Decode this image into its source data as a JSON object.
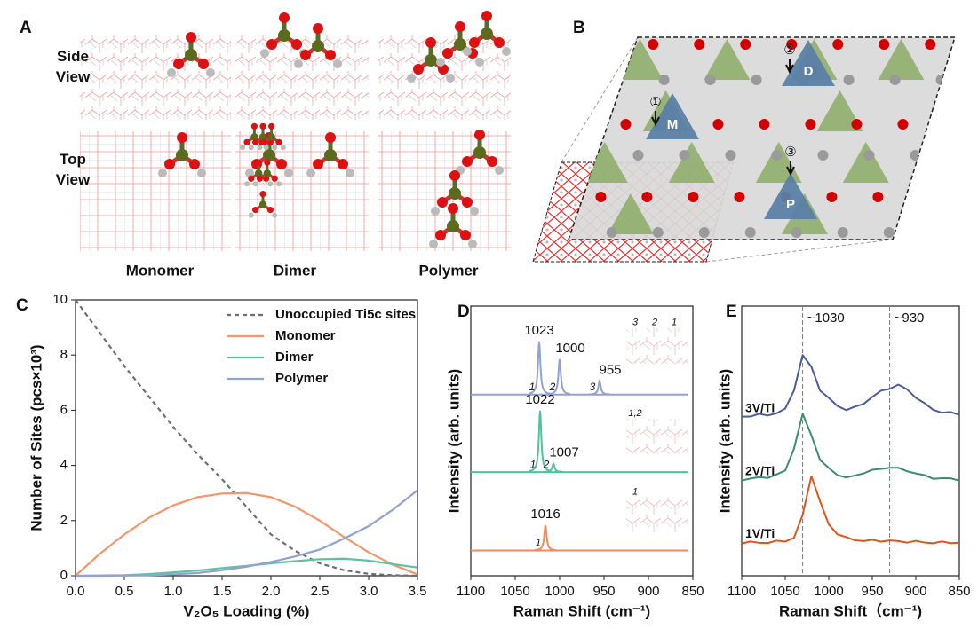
{
  "panel_a": {
    "label": "A",
    "views": [
      "Side View",
      "Top View"
    ],
    "structures": [
      "Monomer",
      "Dimer",
      "Polymer"
    ]
  },
  "panel_b": {
    "label": "B",
    "sites": [
      {
        "number": "①",
        "label": "M"
      },
      {
        "number": "②",
        "label": "D"
      },
      {
        "number": "③",
        "label": "P"
      }
    ]
  },
  "chart_data": [
    {
      "panel": "C",
      "type": "line",
      "xlabel": "V₂O₅ Loading (%)",
      "ylabel": "Number of Sites (pcs×10³)",
      "x": [
        0,
        0.25,
        0.5,
        0.75,
        1.0,
        1.25,
        1.5,
        1.75,
        2.0,
        2.25,
        2.5,
        2.75,
        3.0,
        3.25,
        3.5
      ],
      "xlim": [
        0,
        3.5
      ],
      "ylim": [
        0,
        10
      ],
      "xticks": [
        {
          "value": 0,
          "label": "0.0"
        },
        0.5,
        {
          "value": 1,
          "label": "1.0"
        },
        1.5,
        {
          "value": 2,
          "label": "2.0"
        },
        2.5,
        {
          "value": 3,
          "label": "3.0"
        },
        3.5
      ],
      "yticks": [
        0,
        2,
        4,
        6,
        8,
        10
      ],
      "legend": "upper right",
      "series": [
        {
          "name": "Unoccupied Ti5c sites",
          "color": "#6e6e6e",
          "line_style": "dashed",
          "values": [
            10,
            8.8,
            7.6,
            6.5,
            5.4,
            4.4,
            3.5,
            2.5,
            1.5,
            0.9,
            0.45,
            0.2,
            0.07,
            0.02,
            0
          ]
        },
        {
          "name": "Monomer",
          "color": "#f4956a",
          "line_style": "solid",
          "values": [
            0,
            0.8,
            1.5,
            2.1,
            2.55,
            2.85,
            2.98,
            3.0,
            2.85,
            2.5,
            2.0,
            1.4,
            0.85,
            0.4,
            0.05
          ]
        },
        {
          "name": "Dimer",
          "color": "#5cc3a0",
          "line_style": "solid",
          "values": [
            0,
            0.01,
            0.02,
            0.06,
            0.12,
            0.19,
            0.28,
            0.36,
            0.45,
            0.53,
            0.6,
            0.62,
            0.55,
            0.42,
            0.3
          ]
        },
        {
          "name": "Polymer",
          "color": "#8fa3d1",
          "line_style": "solid",
          "values": [
            0,
            0,
            0.01,
            0.02,
            0.05,
            0.1,
            0.2,
            0.33,
            0.5,
            0.7,
            0.95,
            1.35,
            1.8,
            2.4,
            3.1
          ]
        }
      ]
    },
    {
      "panel": "D",
      "type": "spectrum",
      "xlabel": "Raman Shift (cm⁻¹)",
      "ylabel": "Intensity (arb. units)",
      "xlim": [
        1100,
        850
      ],
      "ylim": [
        0,
        320
      ],
      "xticks": [
        1100,
        1050,
        1000,
        950,
        900,
        850
      ],
      "series": [
        {
          "color": "#8fa3cc",
          "peaks": [
            1023,
            1000,
            955
          ],
          "heights": [
            63,
            42,
            16
          ],
          "modes": [
            "1",
            "2",
            "3"
          ],
          "inset_labels": [
            "3",
            "2",
            "1"
          ]
        },
        {
          "color": "#4fc39b",
          "peaks": [
            1022,
            1007
          ],
          "heights": [
            73,
            10
          ],
          "modes": [
            "1",
            "2"
          ],
          "inset_labels": [
            "1,2"
          ]
        },
        {
          "color": "#f08a5a",
          "peaks": [
            1016
          ],
          "heights": [
            30
          ],
          "modes": [
            "1"
          ],
          "inset_labels": [
            "1"
          ]
        }
      ]
    },
    {
      "panel": "E",
      "type": "line",
      "xlabel": "Raman Shift（cm⁻¹)",
      "ylabel": "Intensity (arb. units)",
      "x": [
        1100,
        1090,
        1080,
        1070,
        1060,
        1050,
        1040,
        1030,
        1020,
        1010,
        1000,
        990,
        980,
        970,
        960,
        950,
        940,
        930,
        920,
        910,
        900,
        890,
        880,
        870,
        860,
        850
      ],
      "xlim": [
        1100,
        850
      ],
      "ylim": [
        0,
        300
      ],
      "xticks": [
        1100,
        1050,
        1000,
        950,
        900,
        850
      ],
      "reference_lines": [
        {
          "x": 1030,
          "label": "~1030"
        },
        {
          "x": 930,
          "label": "~930"
        }
      ],
      "series": [
        {
          "name": "3V/Ti",
          "color": "#4a5c9a",
          "values": [
            0,
            1,
            2,
            2,
            4,
            8,
            30,
            68,
            55,
            30,
            20,
            12,
            8,
            10,
            15,
            22,
            28,
            32,
            35,
            30,
            22,
            14,
            8,
            5,
            4,
            3
          ]
        },
        {
          "name": "2V/Ti",
          "color": "#3d8c6e",
          "values": [
            0,
            1,
            2,
            3,
            5,
            10,
            35,
            72,
            50,
            22,
            12,
            6,
            2,
            4,
            8,
            10,
            12,
            14,
            12,
            10,
            7,
            4,
            2,
            1,
            1,
            0
          ]
        },
        {
          "name": "1V/Ti",
          "color": "#e0541c",
          "values": [
            0,
            0,
            0,
            0,
            1,
            2,
            5,
            30,
            75,
            45,
            20,
            10,
            5,
            3,
            2,
            2,
            2,
            2,
            1,
            1,
            1,
            0,
            0,
            0,
            0,
            0
          ]
        }
      ]
    }
  ]
}
